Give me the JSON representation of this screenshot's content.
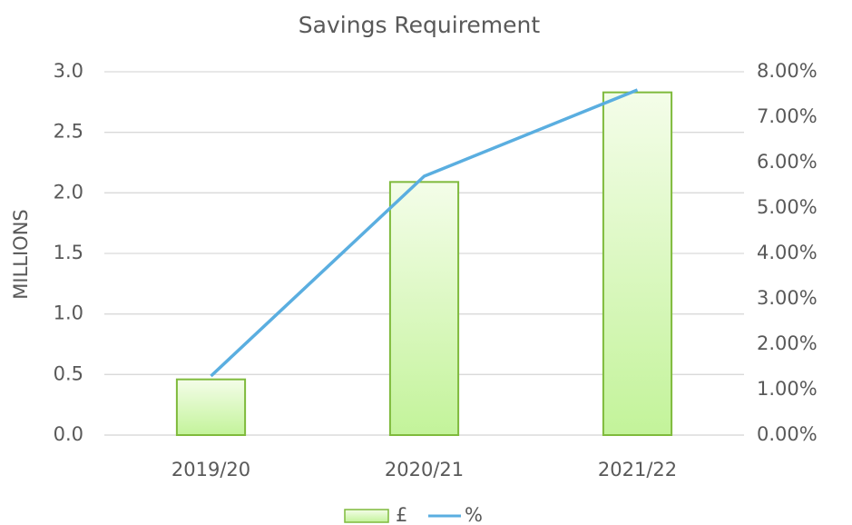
{
  "chart_data": {
    "type": "bar_line",
    "title": "Savings Requirement",
    "ylabel": "MILLIONS",
    "categories": [
      "2019/20",
      "2020/21",
      "2021/22"
    ],
    "series": [
      {
        "name": "£",
        "type": "bar",
        "color": "#7fba3c",
        "values": [
          0.46,
          2.09,
          2.83
        ]
      },
      {
        "name": "%",
        "type": "line",
        "axis": "y2",
        "color": "#5aaee0",
        "values": [
          1.3,
          5.7,
          7.6
        ]
      }
    ],
    "ylim": [
      0,
      3
    ],
    "yticks": [
      {
        "value": 0,
        "label": "0.0"
      },
      0.5,
      {
        "value": 1,
        "label": "1.0"
      },
      1.5,
      {
        "value": 2,
        "label": "2.0"
      },
      2.5,
      {
        "value": 3,
        "label": "3.0"
      }
    ],
    "y2lim": [
      0,
      8
    ],
    "y2ticks": [
      {
        "value": 0,
        "label": "0.00%"
      },
      {
        "value": 1,
        "label": "1.00%"
      },
      {
        "value": 2,
        "label": "2.00%"
      },
      {
        "value": 3,
        "label": "3.00%"
      },
      {
        "value": 4,
        "label": "4.00%"
      },
      {
        "value": 5,
        "label": "5.00%"
      },
      {
        "value": 6,
        "label": "6.00%"
      },
      {
        "value": 7,
        "label": "7.00%"
      },
      {
        "value": 8,
        "label": "8.00%"
      }
    ],
    "grid": true,
    "legend": "bottom"
  }
}
